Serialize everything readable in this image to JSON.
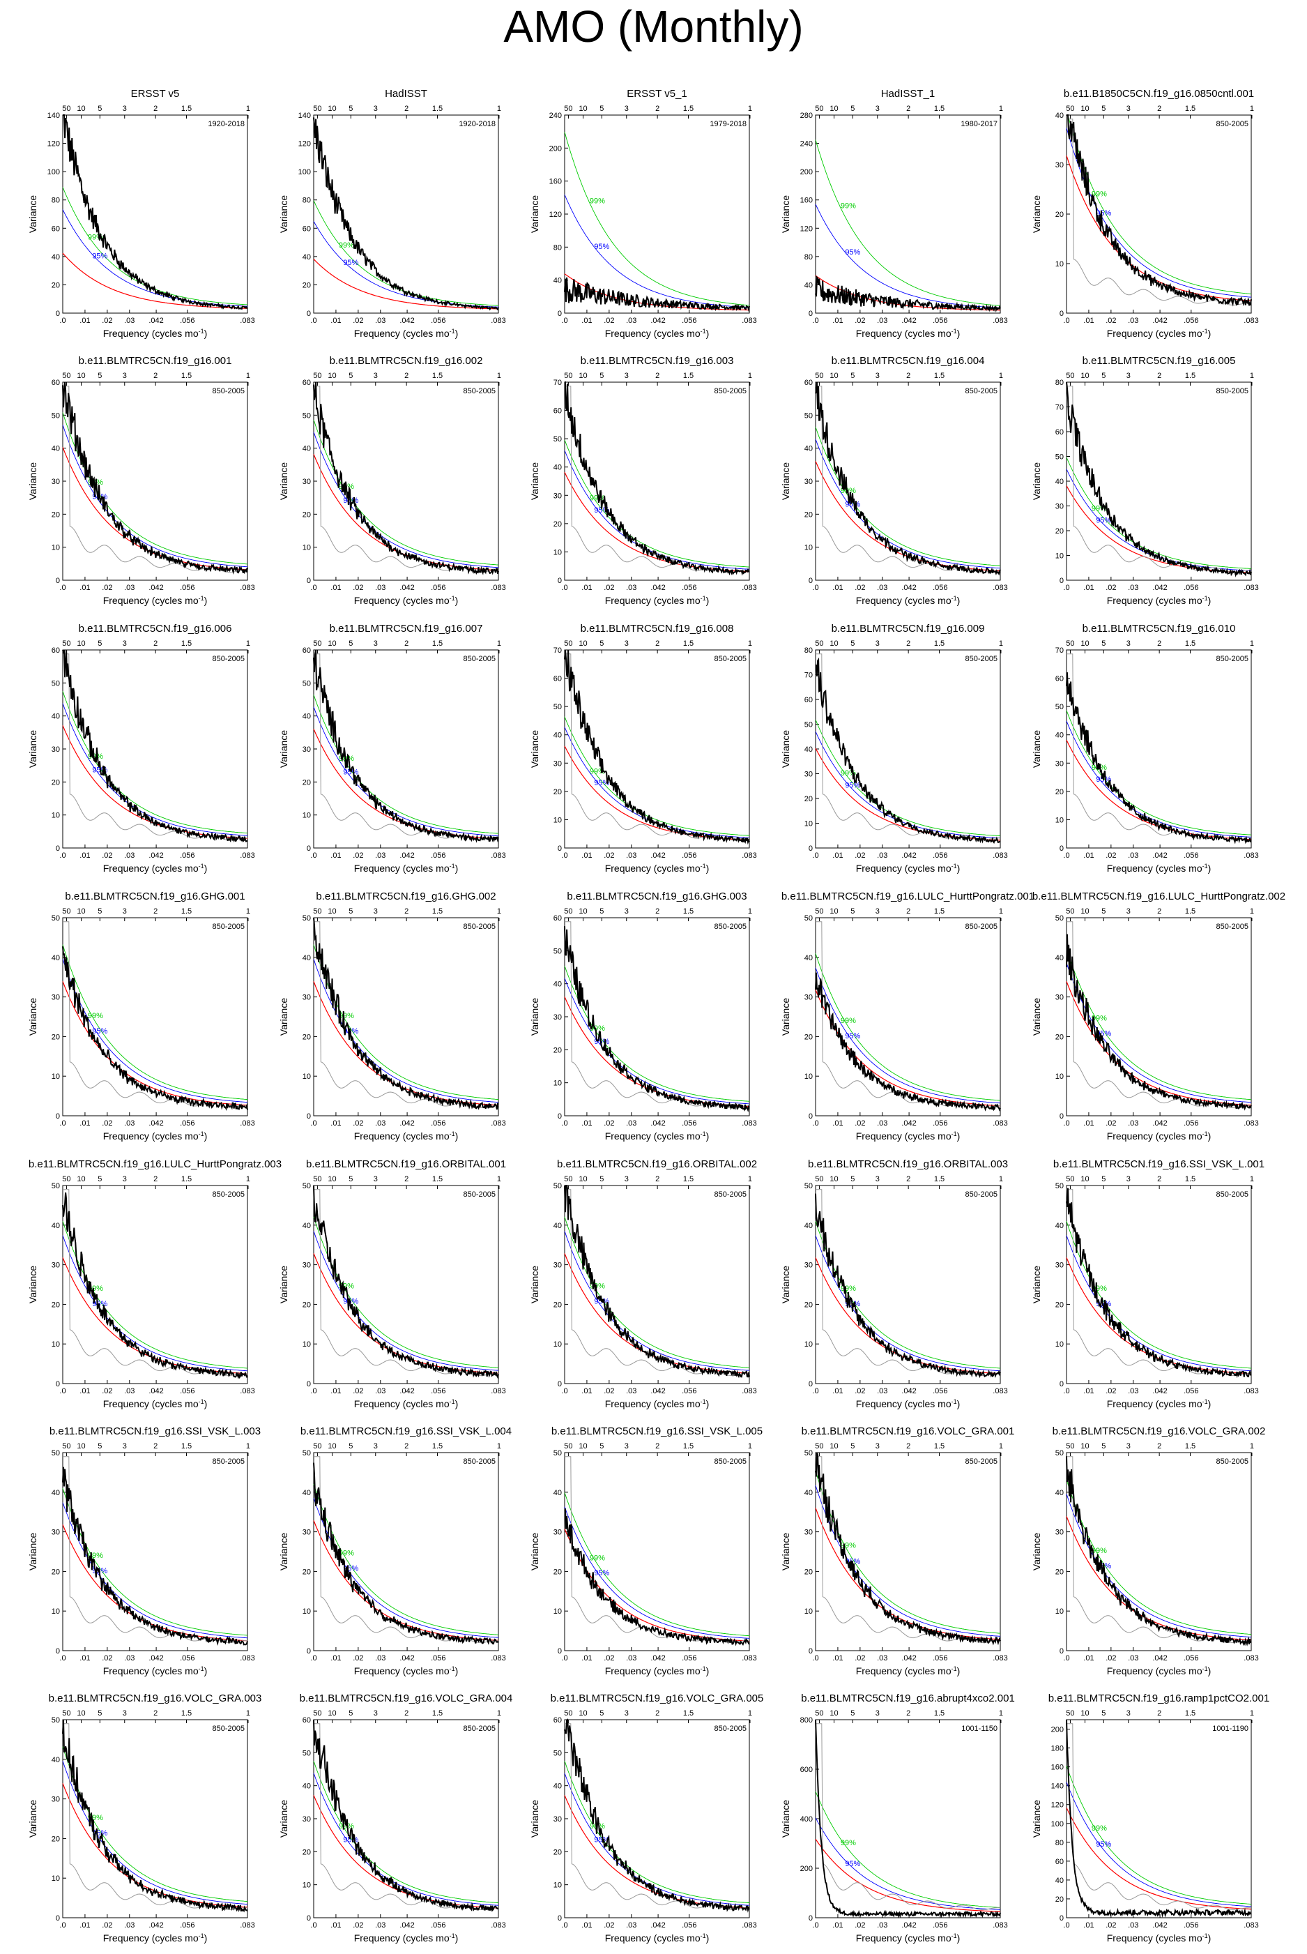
{
  "figure": {
    "title": "AMO (Monthly)"
  },
  "axis_labels": {
    "xlabel": "Frequency (cycles mo",
    "xlabel_sup": "-1",
    "xlabel_end": ")",
    "ylabel": "Variance",
    "bottom_ticks": [
      ".0",
      ".01",
      ".02",
      ".03",
      ".042",
      ".056",
      ".083"
    ],
    "top_ticks": [
      "50",
      "10",
      "5",
      "3",
      "2",
      "1.5",
      "1"
    ]
  },
  "series_colors": {
    "spectrum": "#000000",
    "markov_red_noise": "#ff0000",
    "conf_95": "#0000ff",
    "conf_99": "#00cc00",
    "reference_spectrum": "#999999"
  },
  "chart_data": [
    {
      "type": "line",
      "title": "ERSST v5",
      "period": "1920-2018",
      "ylim": [
        0,
        140
      ],
      "yticks": [
        0,
        20,
        40,
        60,
        80,
        100,
        120,
        140
      ],
      "peak": 138,
      "red0": 40,
      "c95": 70,
      "c99": 85,
      "show_gray": false,
      "xlim": [
        0,
        0.083
      ]
    },
    {
      "type": "line",
      "title": "HadISST",
      "period": "1920-2018",
      "ylim": [
        0,
        140
      ],
      "yticks": [
        0,
        20,
        40,
        60,
        80,
        100,
        120,
        140
      ],
      "peak": 132,
      "red0": 36,
      "c95": 62,
      "c99": 76,
      "show_gray": false,
      "xlim": [
        0,
        0.083
      ]
    },
    {
      "type": "line",
      "title": "ERSST v5_1",
      "period": "1979-2018",
      "ylim": [
        0,
        240
      ],
      "yticks": [
        0,
        40,
        80,
        120,
        160,
        200,
        240
      ],
      "peak": 38,
      "red0": 45,
      "c95": 140,
      "c99": 215,
      "show_gray": false,
      "noisy": true,
      "xlim": [
        0,
        0.083
      ]
    },
    {
      "type": "line",
      "title": "HadISST_1",
      "period": "1980-2017",
      "ylim": [
        0,
        280
      ],
      "yticks": [
        0,
        40,
        80,
        120,
        160,
        200,
        240,
        280
      ],
      "peak": 42,
      "red0": 50,
      "c95": 150,
      "c99": 240,
      "show_gray": false,
      "noisy": true,
      "xlim": [
        0,
        0.083
      ]
    },
    {
      "type": "line",
      "title": "b.e11.B1850C5CN.f19_g16.0850cntl.001",
      "period": "850-2005",
      "ylim": [
        0,
        40
      ],
      "yticks": [
        0,
        10,
        20,
        30,
        40
      ],
      "peak": 40,
      "red0": 30,
      "c95": 35,
      "c99": 38,
      "show_gray": true,
      "xlim": [
        0,
        0.083
      ]
    },
    {
      "type": "line",
      "title": "b.e11.BLMTRC5CN.f19_g16.001",
      "period": "850-2005",
      "ylim": [
        0,
        60
      ],
      "yticks": [
        0,
        10,
        20,
        30,
        40,
        50,
        60
      ],
      "peak": 58,
      "red0": 38,
      "c95": 44,
      "c99": 47,
      "show_gray": true,
      "xlim": [
        0,
        0.083
      ]
    },
    {
      "type": "line",
      "title": "b.e11.BLMTRC5CN.f19_g16.002",
      "period": "850-2005",
      "ylim": [
        0,
        60
      ],
      "yticks": [
        0,
        10,
        20,
        30,
        40,
        50,
        60
      ],
      "peak": 55,
      "red0": 36,
      "c95": 42,
      "c99": 45,
      "show_gray": true,
      "xlim": [
        0,
        0.083
      ]
    },
    {
      "type": "line",
      "title": "b.e11.BLMTRC5CN.f19_g16.003",
      "period": "850-2005",
      "ylim": [
        0,
        70
      ],
      "yticks": [
        0,
        10,
        20,
        30,
        40,
        50,
        60,
        70
      ],
      "peak": 66,
      "red0": 36,
      "c95": 43,
      "c99": 46,
      "show_gray": true,
      "xlim": [
        0,
        0.083
      ]
    },
    {
      "type": "line",
      "title": "b.e11.BLMTRC5CN.f19_g16.004",
      "period": "850-2005",
      "ylim": [
        0,
        60
      ],
      "yticks": [
        0,
        10,
        20,
        30,
        40,
        50,
        60
      ],
      "peak": 55,
      "red0": 34,
      "c95": 40,
      "c99": 43,
      "show_gray": true,
      "xlim": [
        0,
        0.083
      ]
    },
    {
      "type": "line",
      "title": "b.e11.BLMTRC5CN.f19_g16.005",
      "period": "850-2005",
      "ylim": [
        0,
        80
      ],
      "yticks": [
        0,
        10,
        20,
        30,
        40,
        50,
        60,
        70,
        80
      ],
      "peak": 72,
      "red0": 36,
      "c95": 42,
      "c99": 46,
      "show_gray": true,
      "xlim": [
        0,
        0.083
      ]
    },
    {
      "type": "line",
      "title": "b.e11.BLMTRC5CN.f19_g16.006",
      "period": "850-2005",
      "ylim": [
        0,
        60
      ],
      "yticks": [
        0,
        10,
        20,
        30,
        40,
        50,
        60
      ],
      "peak": 58,
      "red0": 35,
      "c95": 41,
      "c99": 44,
      "show_gray": true,
      "xlim": [
        0,
        0.083
      ]
    },
    {
      "type": "line",
      "title": "b.e11.BLMTRC5CN.f19_g16.007",
      "period": "850-2005",
      "ylim": [
        0,
        60
      ],
      "yticks": [
        0,
        10,
        20,
        30,
        40,
        50,
        60
      ],
      "peak": 56,
      "red0": 34,
      "c95": 40,
      "c99": 43,
      "show_gray": true,
      "xlim": [
        0,
        0.083
      ]
    },
    {
      "type": "line",
      "title": "b.e11.BLMTRC5CN.f19_g16.008",
      "period": "850-2005",
      "ylim": [
        0,
        70
      ],
      "yticks": [
        0,
        10,
        20,
        30,
        40,
        50,
        60,
        70
      ],
      "peak": 68,
      "red0": 34,
      "c95": 40,
      "c99": 43,
      "show_gray": true,
      "xlim": [
        0,
        0.083
      ]
    },
    {
      "type": "line",
      "title": "b.e11.BLMTRC5CN.f19_g16.009",
      "period": "850-2005",
      "ylim": [
        0,
        80
      ],
      "yticks": [
        0,
        10,
        20,
        30,
        40,
        50,
        60,
        70,
        80
      ],
      "peak": 72,
      "red0": 38,
      "c95": 44,
      "c99": 48,
      "show_gray": true,
      "xlim": [
        0,
        0.083
      ]
    },
    {
      "type": "line",
      "title": "b.e11.BLMTRC5CN.f19_g16.010",
      "period": "850-2005",
      "ylim": [
        0,
        70
      ],
      "yticks": [
        0,
        10,
        20,
        30,
        40,
        50,
        60,
        70
      ],
      "peak": 60,
      "red0": 36,
      "c95": 42,
      "c99": 45,
      "show_gray": true,
      "xlim": [
        0,
        0.083
      ]
    },
    {
      "type": "line",
      "title": "b.e11.BLMTRC5CN.f19_g16.GHG.001",
      "period": "850-2005",
      "ylim": [
        0,
        50
      ],
      "yticks": [
        0,
        10,
        20,
        30,
        40,
        50
      ],
      "peak": 39,
      "red0": 32,
      "c95": 37,
      "c99": 40,
      "show_gray": true,
      "xlim": [
        0,
        0.083
      ]
    },
    {
      "type": "line",
      "title": "b.e11.BLMTRC5CN.f19_g16.GHG.002",
      "period": "850-2005",
      "ylim": [
        0,
        50
      ],
      "yticks": [
        0,
        10,
        20,
        30,
        40,
        50
      ],
      "peak": 46,
      "red0": 32,
      "c95": 37,
      "c99": 40,
      "show_gray": true,
      "xlim": [
        0,
        0.083
      ]
    },
    {
      "type": "line",
      "title": "b.e11.BLMTRC5CN.f19_g16.GHG.003",
      "period": "850-2005",
      "ylim": [
        0,
        60
      ],
      "yticks": [
        0,
        10,
        20,
        30,
        40,
        50,
        60
      ],
      "peak": 52,
      "red0": 34,
      "c95": 39,
      "c99": 42,
      "show_gray": true,
      "xlim": [
        0,
        0.083
      ]
    },
    {
      "type": "line",
      "title": "b.e11.BLMTRC5CN.f19_g16.LULC_HurttPongratz.001",
      "period": "850-2005",
      "ylim": [
        0,
        50
      ],
      "yticks": [
        0,
        10,
        20,
        30,
        40,
        50
      ],
      "peak": 33,
      "red0": 30,
      "c95": 35,
      "c99": 38,
      "show_gray": true,
      "xlim": [
        0,
        0.083
      ]
    },
    {
      "type": "line",
      "title": "b.e11.BLMTRC5CN.f19_g16.LULC_HurttPongratz.002",
      "period": "850-2005",
      "ylim": [
        0,
        50
      ],
      "yticks": [
        0,
        10,
        20,
        30,
        40,
        50
      ],
      "peak": 40,
      "red0": 32,
      "c95": 36,
      "c99": 39,
      "show_gray": true,
      "xlim": [
        0,
        0.083
      ]
    },
    {
      "type": "line",
      "title": "b.e11.BLMTRC5CN.f19_g16.LULC_HurttPongratz.003",
      "period": "850-2005",
      "ylim": [
        0,
        50
      ],
      "yticks": [
        0,
        10,
        20,
        30,
        40,
        50
      ],
      "peak": 45,
      "red0": 30,
      "c95": 35,
      "c99": 38,
      "show_gray": true,
      "xlim": [
        0,
        0.083
      ]
    },
    {
      "type": "line",
      "title": "b.e11.BLMTRC5CN.f19_g16.ORBITAL.001",
      "period": "850-2005",
      "ylim": [
        0,
        50
      ],
      "yticks": [
        0,
        10,
        20,
        30,
        40,
        50
      ],
      "peak": 45,
      "red0": 31,
      "c95": 36,
      "c99": 39,
      "show_gray": true,
      "xlim": [
        0,
        0.083
      ]
    },
    {
      "type": "line",
      "title": "b.e11.BLMTRC5CN.f19_g16.ORBITAL.002",
      "period": "850-2005",
      "ylim": [
        0,
        50
      ],
      "yticks": [
        0,
        10,
        20,
        30,
        40,
        50
      ],
      "peak": 48,
      "red0": 31,
      "c95": 36,
      "c99": 39,
      "show_gray": true,
      "xlim": [
        0,
        0.083
      ]
    },
    {
      "type": "line",
      "title": "b.e11.BLMTRC5CN.f19_g16.ORBITAL.003",
      "period": "850-2005",
      "ylim": [
        0,
        50
      ],
      "yticks": [
        0,
        10,
        20,
        30,
        40,
        50
      ],
      "peak": 44,
      "red0": 30,
      "c95": 35,
      "c99": 38,
      "show_gray": true,
      "xlim": [
        0,
        0.083
      ]
    },
    {
      "type": "line",
      "title": "b.e11.BLMTRC5CN.f19_g16.SSI_VSK_L.001",
      "period": "850-2005",
      "ylim": [
        0,
        50
      ],
      "yticks": [
        0,
        10,
        20,
        30,
        40,
        50
      ],
      "peak": 45,
      "red0": 30,
      "c95": 35,
      "c99": 38,
      "show_gray": true,
      "xlim": [
        0,
        0.083
      ]
    },
    {
      "type": "line",
      "title": "b.e11.BLMTRC5CN.f19_g16.SSI_VSK_L.003",
      "period": "850-2005",
      "ylim": [
        0,
        50
      ],
      "yticks": [
        0,
        10,
        20,
        30,
        40,
        50
      ],
      "peak": 42,
      "red0": 30,
      "c95": 35,
      "c99": 38,
      "show_gray": true,
      "xlim": [
        0,
        0.083
      ]
    },
    {
      "type": "line",
      "title": "b.e11.BLMTRC5CN.f19_g16.SSI_VSK_L.004",
      "period": "850-2005",
      "ylim": [
        0,
        50
      ],
      "yticks": [
        0,
        10,
        20,
        30,
        40,
        50
      ],
      "peak": 41,
      "red0": 31,
      "c95": 36,
      "c99": 39,
      "show_gray": true,
      "xlim": [
        0,
        0.083
      ]
    },
    {
      "type": "line",
      "title": "b.e11.BLMTRC5CN.f19_g16.SSI_VSK_L.005",
      "period": "850-2005",
      "ylim": [
        0,
        50
      ],
      "yticks": [
        0,
        10,
        20,
        30,
        40,
        50
      ],
      "peak": 32,
      "red0": 29,
      "c95": 34,
      "c99": 37,
      "show_gray": true,
      "xlim": [
        0,
        0.083
      ]
    },
    {
      "type": "line",
      "title": "b.e11.BLMTRC5CN.f19_g16.VOLC_GRA.001",
      "period": "850-2005",
      "ylim": [
        0,
        50
      ],
      "yticks": [
        0,
        10,
        20,
        30,
        40,
        50
      ],
      "peak": 47,
      "red0": 34,
      "c95": 39,
      "c99": 42,
      "show_gray": true,
      "xlim": [
        0,
        0.083
      ]
    },
    {
      "type": "line",
      "title": "b.e11.BLMTRC5CN.f19_g16.VOLC_GRA.002",
      "period": "850-2005",
      "ylim": [
        0,
        50
      ],
      "yticks": [
        0,
        10,
        20,
        30,
        40,
        50
      ],
      "peak": 44,
      "red0": 32,
      "c95": 37,
      "c99": 40,
      "show_gray": true,
      "xlim": [
        0,
        0.083
      ]
    },
    {
      "type": "line",
      "title": "b.e11.BLMTRC5CN.f19_g16.VOLC_GRA.003",
      "period": "850-2005",
      "ylim": [
        0,
        50
      ],
      "yticks": [
        0,
        10,
        20,
        30,
        40,
        50
      ],
      "peak": 45,
      "red0": 32,
      "c95": 37,
      "c99": 40,
      "show_gray": true,
      "xlim": [
        0,
        0.083
      ]
    },
    {
      "type": "line",
      "title": "b.e11.BLMTRC5CN.f19_g16.VOLC_GRA.004",
      "period": "850-2005",
      "ylim": [
        0,
        60
      ],
      "yticks": [
        0,
        10,
        20,
        30,
        40,
        50,
        60
      ],
      "peak": 58,
      "red0": 35,
      "c95": 41,
      "c99": 44,
      "show_gray": true,
      "xlim": [
        0,
        0.083
      ]
    },
    {
      "type": "line",
      "title": "b.e11.BLMTRC5CN.f19_g16.VOLC_GRA.005",
      "period": "850-2005",
      "ylim": [
        0,
        60
      ],
      "yticks": [
        0,
        10,
        20,
        30,
        40,
        50,
        60
      ],
      "peak": 60,
      "red0": 35,
      "c95": 41,
      "c99": 44,
      "show_gray": true,
      "xlim": [
        0,
        0.083
      ]
    },
    {
      "type": "line",
      "title": "b.e11.BLMTRC5CN.f19_g16.abrupt4xco2.001",
      "period": "1001-1150",
      "ylim": [
        0,
        800
      ],
      "yticks": [
        0,
        200,
        400,
        600,
        800
      ],
      "peak": 800,
      "red0": 300,
      "c95": 380,
      "c99": 480,
      "show_gray": true,
      "sharp": true,
      "xlim": [
        0,
        0.083
      ]
    },
    {
      "type": "line",
      "title": "b.e11.BLMTRC5CN.f19_g16.ramp1pctCO2.001",
      "period": "1001-1190",
      "ylim": [
        0,
        210
      ],
      "yticks": [
        0,
        20,
        40,
        60,
        80,
        100,
        120,
        140,
        160,
        180,
        200
      ],
      "peak": 205,
      "red0": 110,
      "c95": 135,
      "c99": 150,
      "show_gray": true,
      "sharp": true,
      "xlim": [
        0,
        0.083
      ]
    }
  ]
}
